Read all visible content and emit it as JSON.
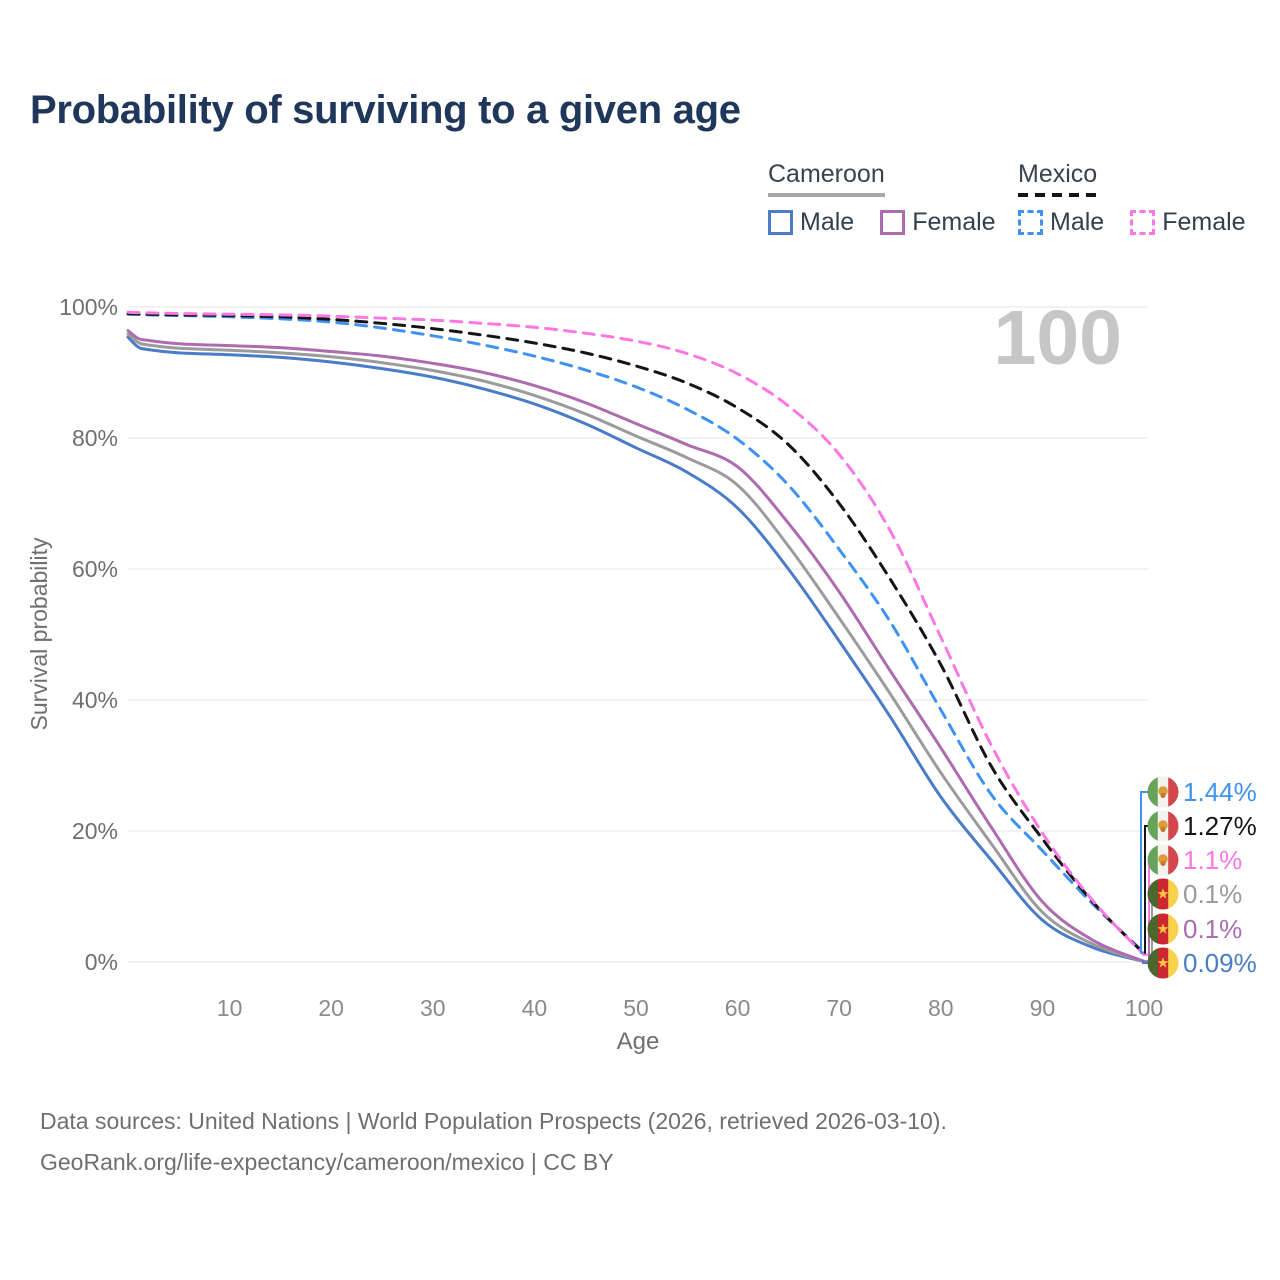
{
  "title": "Probability of surviving to a given age",
  "watermark": "100",
  "legend": {
    "groups": [
      {
        "label": "Cameroon",
        "underline_color": "#a8a8a8",
        "underline_dashed": false,
        "items": [
          {
            "label": "Male",
            "color": "#4a7cc7",
            "dashed": false
          },
          {
            "label": "Female",
            "color": "#ad6cb0",
            "dashed": false
          }
        ]
      },
      {
        "label": "Mexico",
        "underline_color": "#151515",
        "underline_dashed": true,
        "items": [
          {
            "label": "Male",
            "color": "#3f92f0",
            "dashed": true
          },
          {
            "label": "Female",
            "color": "#fb78e2",
            "dashed": true
          }
        ]
      }
    ]
  },
  "chart_data": {
    "type": "line",
    "title": "Probability of surviving to a given age",
    "xlabel": "Age",
    "ylabel": "Survival probability",
    "xlim": [
      0,
      100
    ],
    "ylim": [
      0,
      100
    ],
    "grid": "horizontal",
    "x_ticks": [
      10,
      20,
      30,
      40,
      50,
      60,
      70,
      80,
      90,
      100
    ],
    "y_ticks": [
      {
        "label": "0%",
        "value": 0
      },
      {
        "label": "20%",
        "value": 20
      },
      {
        "label": "40%",
        "value": 40
      },
      {
        "label": "60%",
        "value": 60
      },
      {
        "label": "80%",
        "value": 80
      },
      {
        "label": "100%",
        "value": 100
      }
    ],
    "x": [
      0,
      1,
      2,
      5,
      10,
      15,
      20,
      25,
      30,
      35,
      40,
      45,
      50,
      55,
      60,
      65,
      70,
      75,
      80,
      85,
      90,
      95,
      100
    ],
    "series": [
      {
        "id": "cameroon-male",
        "name": "Cameroon Male",
        "country": "Cameroon",
        "sex": "Male",
        "color": "#4a7cc7",
        "dashed": false,
        "values": [
          95.4,
          93.9,
          93.5,
          93.0,
          92.7,
          92.3,
          91.6,
          90.6,
          89.3,
          87.5,
          85.2,
          82.2,
          78.5,
          74.8,
          69.3,
          60.0,
          49.0,
          37.5,
          25.2,
          15.5,
          6.4,
          2.2,
          0.09
        ]
      },
      {
        "id": "cameroon-total",
        "name": "Cameroon",
        "country": "Cameroon",
        "sex": "Both",
        "color": "#9b9b9b",
        "dashed": false,
        "values": [
          95.9,
          94.6,
          94.2,
          93.7,
          93.4,
          93.0,
          92.4,
          91.5,
          90.3,
          88.7,
          86.5,
          83.7,
          80.3,
          77.0,
          72.8,
          63.5,
          52.5,
          41.0,
          28.9,
          18.0,
          7.6,
          2.7,
          0.1
        ]
      },
      {
        "id": "cameroon-female",
        "name": "Cameroon Female",
        "country": "Cameroon",
        "sex": "Female",
        "color": "#ad6cb0",
        "dashed": false,
        "values": [
          96.4,
          95.2,
          94.9,
          94.4,
          94.1,
          93.8,
          93.2,
          92.5,
          91.4,
          90.0,
          88.0,
          85.4,
          82.2,
          79.0,
          75.6,
          67.0,
          56.5,
          44.5,
          32.7,
          20.5,
          9.2,
          3.3,
          0.1
        ]
      },
      {
        "id": "mexico-male",
        "name": "Mexico Male",
        "country": "Mexico",
        "sex": "Male",
        "color": "#3f92f0",
        "dashed": true,
        "values": [
          98.9,
          98.85,
          98.8,
          98.7,
          98.5,
          98.2,
          97.7,
          96.8,
          95.6,
          94.2,
          92.5,
          90.4,
          87.8,
          84.4,
          79.8,
          72.8,
          63.0,
          52.0,
          38.5,
          25.5,
          17.0,
          8.8,
          1.44
        ]
      },
      {
        "id": "mexico-total",
        "name": "Mexico",
        "country": "Mexico",
        "sex": "Both",
        "color": "#151515",
        "dashed": true,
        "values": [
          99.0,
          98.95,
          98.9,
          98.8,
          98.7,
          98.5,
          98.1,
          97.5,
          96.7,
          95.7,
          94.5,
          93.0,
          91.0,
          88.4,
          84.6,
          79.0,
          70.0,
          58.5,
          45.4,
          29.8,
          18.8,
          9.1,
          1.27
        ]
      },
      {
        "id": "mexico-female",
        "name": "Mexico Female",
        "country": "Mexico",
        "sex": "Female",
        "color": "#fb78e2",
        "dashed": true,
        "values": [
          99.2,
          99.15,
          99.1,
          99.0,
          98.9,
          98.8,
          98.6,
          98.3,
          98.0,
          97.5,
          96.9,
          96.0,
          94.8,
          92.9,
          89.8,
          84.9,
          77.5,
          65.9,
          49.6,
          33.0,
          19.7,
          9.3,
          1.1
        ]
      }
    ],
    "end_labels": [
      {
        "text": "1.44%",
        "series": "mexico-male",
        "flag": "mexico",
        "color": "#3f92f0"
      },
      {
        "text": "1.27%",
        "series": "mexico-total",
        "flag": "mexico",
        "color": "#151515"
      },
      {
        "text": "1.1%",
        "series": "mexico-female",
        "flag": "mexico",
        "color": "#fb78e2"
      },
      {
        "text": "0.1%",
        "series": "cameroon-total",
        "flag": "cameroon",
        "color": "#9b9b9b"
      },
      {
        "text": "0.1%",
        "series": "cameroon-female",
        "flag": "cameroon",
        "color": "#ad6cb0"
      },
      {
        "text": "0.09%",
        "series": "cameroon-male",
        "flag": "cameroon",
        "color": "#4a7cc7"
      }
    ],
    "legend_position": "top-right"
  },
  "flags": {
    "mexico": {
      "stripes": [
        "#68a35a",
        "#f4f2ee",
        "#d2474b"
      ],
      "emblem": "eagle",
      "emblem_color": "#dd9b3c"
    },
    "cameroon": {
      "stripes": [
        "#4a682c",
        "#cc2630",
        "#f7d04c"
      ],
      "emblem": "star",
      "emblem_color": "#f6c63e"
    }
  },
  "footer": {
    "line1": "Data sources: United Nations | World Population Prospects (2026, retrieved 2026-03-10).",
    "line2": "GeoRank.org/life-expectancy/cameroon/mexico | CC BY"
  }
}
